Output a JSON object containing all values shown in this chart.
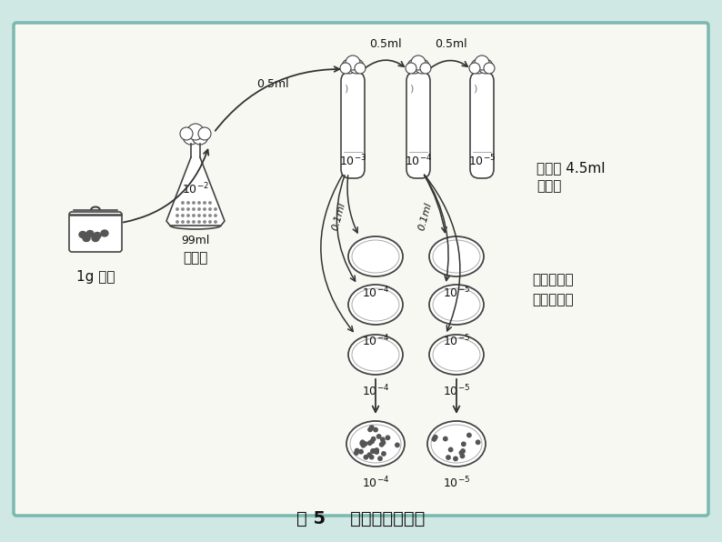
{
  "bg_outer": "#d0e8e4",
  "bg_panel": "#f8f8f3",
  "border_color": "#7ab8b0",
  "line_color": "#444444",
  "text_color": "#111111",
  "label_1g": "1g 土样",
  "label_sterile_water": "无菌水",
  "label_99ml": "99ml",
  "label_flask_conc": "$10^{-2}$",
  "label_05ml_arrow": "0.5ml",
  "label_05ml_t1t2": "0.5ml",
  "label_05ml_t2t3": "0.5ml",
  "label_tubes": [
    "$10^{-3}$",
    "$10^{-4}$",
    "$10^{-5}$"
  ],
  "label_each_45ml": "各盛有 4.5ml",
  "label_wujunshui": "无菌水",
  "label_01ml_1": "0.1ml",
  "label_01ml_2": "0.1ml",
  "label_dish_conc4": "$10^{-4}$",
  "label_dish_conc5": "$10^{-5}$",
  "label_right1": "各种浓度做",
  "label_right2": "三个培养皿",
  "label_result4": "$10^{-4}$",
  "label_result5": "$10^{-5}$",
  "figure_title": "图 5    实验过程示意图"
}
